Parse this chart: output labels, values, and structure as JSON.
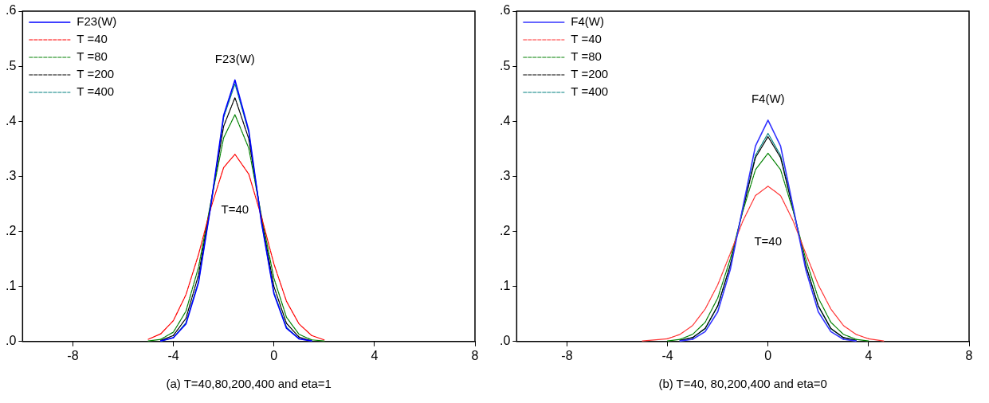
{
  "chart_data": [
    {
      "type": "line",
      "xlabel": "(a) T=40,80,200,400 and eta=1",
      "legend": "top left",
      "grid": false,
      "marker": "none",
      "xlim": [
        -10,
        8
      ],
      "xticks": [
        -8,
        -4,
        0,
        4,
        8
      ],
      "ylim": [
        0,
        0.6
      ],
      "yticks": [
        {
          "value": 0,
          "label": ".0"
        },
        {
          "value": 0.1,
          "label": ".1"
        },
        {
          "value": 0.2,
          "label": ".2"
        },
        {
          "value": 0.3,
          "label": ".3"
        },
        {
          "value": 0.4,
          "label": ".4"
        },
        {
          "value": 0.5,
          "label": ".5"
        },
        {
          "value": 0.6,
          "label": ".6"
        }
      ],
      "x": [
        -5,
        -4.5,
        -4,
        -3.5,
        -3,
        -2.5,
        -2,
        -1.55,
        -1,
        -0.5,
        0,
        0.5,
        1,
        1.5,
        2
      ],
      "annotations": [
        "F23(W)",
        "T=40"
      ],
      "series": [
        {
          "name": "F23(W)",
          "color": "#0000ff",
          "line_style": "solid",
          "values": [
            null,
            0.001,
            0.007,
            0.032,
            0.107,
            0.25,
            0.411,
            0.475,
            0.383,
            0.218,
            0.087,
            0.024,
            0.005,
            0.001,
            null
          ]
        },
        {
          "name": "T =40",
          "color": "#ff0000",
          "line_style": "dashed",
          "values": [
            0.004,
            0.014,
            0.038,
            0.085,
            0.158,
            0.244,
            0.316,
            0.34,
            0.304,
            0.227,
            0.141,
            0.073,
            0.032,
            0.011,
            0.003
          ]
        },
        {
          "name": "T =80",
          "color": "#008000",
          "line_style": "dashed",
          "values": [
            0.001,
            0.004,
            0.017,
            0.055,
            0.135,
            0.255,
            0.37,
            0.412,
            0.351,
            0.229,
            0.115,
            0.044,
            0.013,
            0.003,
            0.001
          ]
        },
        {
          "name": "T =200",
          "color": "#000000",
          "line_style": "dashed",
          "values": [
            null,
            0.002,
            0.011,
            0.042,
            0.121,
            0.254,
            0.391,
            0.443,
            0.368,
            0.224,
            0.1,
            0.033,
            0.008,
            0.001,
            null
          ]
        },
        {
          "name": "T =400",
          "color": "#008080",
          "line_style": "dashed",
          "values": [
            null,
            0.001,
            0.007,
            0.034,
            0.109,
            0.25,
            0.407,
            0.468,
            0.38,
            0.218,
            0.089,
            0.026,
            0.005,
            null,
            null
          ]
        }
      ]
    },
    {
      "type": "line",
      "xlabel": "(b) T=40, 80,200,400 and eta=0",
      "legend": "top left",
      "grid": false,
      "marker": "none",
      "xlim": [
        -10,
        8
      ],
      "xticks": [
        -8,
        -4,
        0,
        4,
        8
      ],
      "ylim": [
        0,
        0.6
      ],
      "yticks": [
        {
          "value": 0,
          "label": ".0"
        },
        {
          "value": 0.1,
          "label": ".1"
        },
        {
          "value": 0.2,
          "label": ".2"
        },
        {
          "value": 0.3,
          "label": ".3"
        },
        {
          "value": 0.4,
          "label": ".4"
        },
        {
          "value": 0.5,
          "label": ".5"
        },
        {
          "value": 0.6,
          "label": ".6"
        }
      ],
      "x": [
        -5,
        -4,
        -3.5,
        -3,
        -2.5,
        -2,
        -1.5,
        -1,
        -0.5,
        0,
        0.5,
        1,
        1.5,
        2,
        2.5,
        3,
        3.5,
        4,
        4.6
      ],
      "annotations": [
        "F4(W)",
        "T=40"
      ],
      "series": [
        {
          "name": "F4(W)",
          "color": "#3333ff",
          "line_style": "solid",
          "values": [
            null,
            null,
            0.001,
            0.004,
            0.018,
            0.054,
            0.131,
            0.244,
            0.355,
            0.402,
            0.355,
            0.244,
            0.131,
            0.054,
            0.018,
            0.004,
            0.001,
            null,
            null
          ]
        },
        {
          "name": "T =40",
          "color": "#ff3333",
          "line_style": "dashed",
          "values": [
            0.001,
            0.005,
            0.013,
            0.029,
            0.059,
            0.103,
            0.16,
            0.219,
            0.265,
            0.282,
            0.265,
            0.219,
            0.16,
            0.103,
            0.059,
            0.029,
            0.013,
            0.005,
            0.001
          ]
        },
        {
          "name": "T =80",
          "color": "#008000",
          "line_style": "dashed",
          "values": [
            null,
            0.001,
            0.004,
            0.013,
            0.035,
            0.079,
            0.15,
            0.237,
            0.312,
            0.342,
            0.312,
            0.237,
            0.15,
            0.079,
            0.035,
            0.013,
            0.004,
            0.001,
            null
          ]
        },
        {
          "name": "T =200",
          "color": "#000000",
          "line_style": "dashed",
          "values": [
            null,
            null,
            0.002,
            0.007,
            0.024,
            0.065,
            0.139,
            0.24,
            0.334,
            0.372,
            0.334,
            0.24,
            0.139,
            0.065,
            0.024,
            0.007,
            0.002,
            null,
            null
          ]
        },
        {
          "name": "T =400",
          "color": "#008080",
          "line_style": "dashed",
          "values": [
            null,
            null,
            0.002,
            0.007,
            0.023,
            0.064,
            0.139,
            0.242,
            0.338,
            0.378,
            0.338,
            0.242,
            0.139,
            0.064,
            0.023,
            0.007,
            0.002,
            null,
            null
          ]
        }
      ]
    }
  ]
}
